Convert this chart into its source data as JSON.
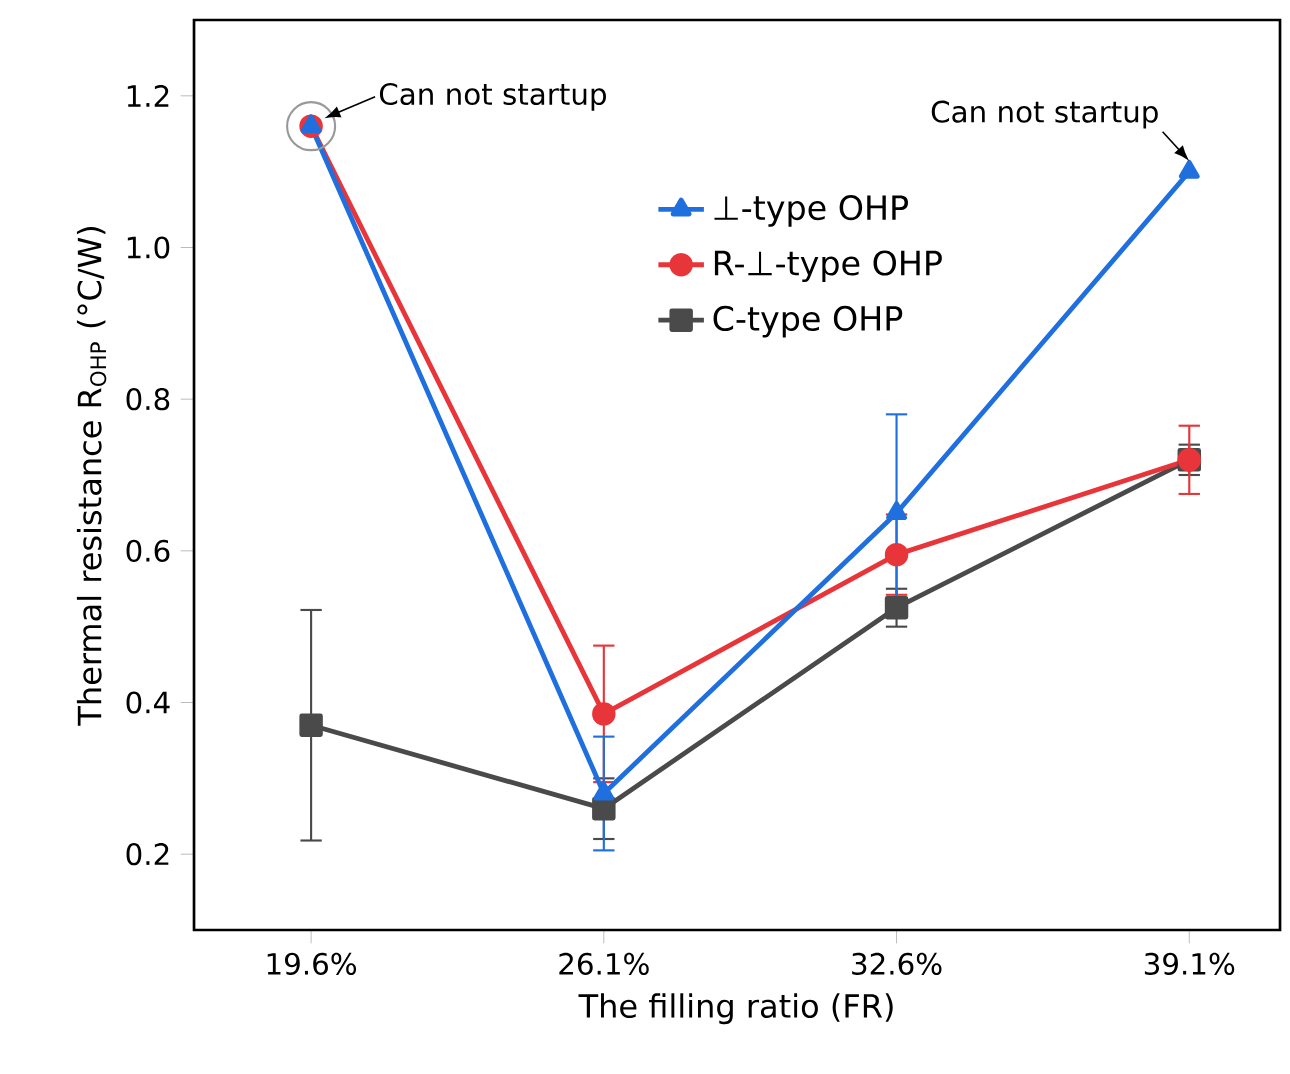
{
  "chart_data": {
    "type": "line",
    "xlabel": "The filling ratio (FR)",
    "ylabel": "Thermal resistance R$_{OHP}$ (°C/W)",
    "categories": [
      "19.6%",
      "26.1%",
      "32.6%",
      "39.1%"
    ],
    "ylim": [
      0.1,
      1.3
    ],
    "yticks": [
      0.2,
      0.4,
      0.6,
      0.8,
      {
        "value": 1,
        "label": "1.0"
      },
      1.2
    ],
    "legend": "top",
    "grid": false,
    "series": [
      {
        "name": "⊥-type OHP",
        "color": "#1f6fdf",
        "marker": "triangle",
        "values": [
          1.16,
          0.28,
          0.65,
          1.1
        ],
        "errors": [
          null,
          0.075,
          0.13,
          null
        ]
      },
      {
        "name": "R-⊥-type OHP",
        "color": "#e8353a",
        "marker": "circle",
        "values": [
          1.16,
          0.385,
          0.595,
          0.72
        ],
        "errors": [
          null,
          0.09,
          0.053,
          0.045
        ]
      },
      {
        "name": "C-type OHP",
        "color": "#4a4a4a",
        "marker": "square",
        "values": [
          0.37,
          0.26,
          0.525,
          0.72
        ],
        "errors": [
          0.152,
          0.04,
          0.025,
          0.02
        ]
      }
    ],
    "annotations": [
      {
        "text": "Can not startup",
        "x": "19.6%",
        "y": 1.16
      },
      {
        "text": "Can not startup",
        "x": "39.1%",
        "y": 1.1
      }
    ]
  }
}
